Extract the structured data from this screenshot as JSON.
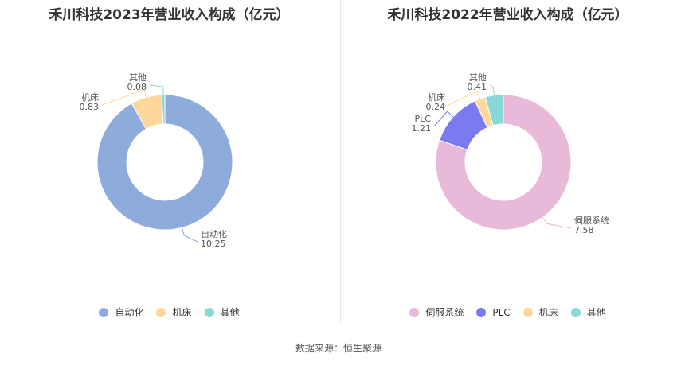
{
  "chart_data": [
    {
      "type": "pie",
      "title": "禾川科技2023年营业收入构成（亿元）",
      "series": [
        {
          "name": "自动化",
          "value": 10.25,
          "value_label": "10.25",
          "color": "#8eacdb"
        },
        {
          "name": "机床",
          "value": 0.83,
          "value_label": "0.83",
          "color": "#fdd89a"
        },
        {
          "name": "其他",
          "value": 0.08,
          "value_label": "0.08",
          "color": "#88d8d8"
        }
      ],
      "legend_position": "bottom"
    },
    {
      "type": "pie",
      "title": "禾川科技2022年营业收入构成（亿元）",
      "series": [
        {
          "name": "伺服系统",
          "value": 7.58,
          "value_label": "7.58",
          "color": "#e8b9d8"
        },
        {
          "name": "PLC",
          "value": 1.21,
          "value_label": "1.21",
          "color": "#7b7bf0"
        },
        {
          "name": "机床",
          "value": 0.24,
          "value_label": "0.24",
          "color": "#fdd89a"
        },
        {
          "name": "其他",
          "value": 0.41,
          "value_label": "0.41",
          "color": "#88d8d8"
        }
      ],
      "legend_position": "bottom"
    }
  ],
  "source": "数据来源：恒生聚源"
}
